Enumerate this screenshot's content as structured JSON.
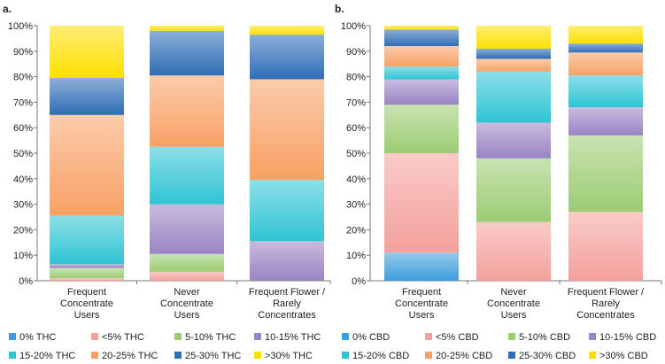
{
  "colors": {
    "c0": "#3c9fdd",
    "c1": "#f4a09c",
    "c2": "#9ccc72",
    "c3": "#9a84c4",
    "c4": "#2fc4d4",
    "c5": "#f8a165",
    "c6": "#2f6db6",
    "c7": "#ffe000"
  },
  "chart_data": [
    {
      "type": "bar",
      "stacked": true,
      "title": "a.",
      "categories": [
        "Frequent\nConcentrate\nUsers",
        "Never\nConcentrate\nUsers",
        "Frequent Flower /\nRarely\nConcentrates"
      ],
      "ylim": [
        0,
        100
      ],
      "yticks": [
        "0%",
        "10%",
        "20%",
        "30%",
        "40%",
        "50%",
        "60%",
        "70%",
        "80%",
        "90%",
        "100%"
      ],
      "series": [
        {
          "name": "0% THC",
          "color": "c0",
          "values": [
            0,
            0,
            0
          ]
        },
        {
          "name": "<5% THC",
          "color": "c1",
          "values": [
            1,
            3.5,
            0
          ]
        },
        {
          "name": "5-10% THC",
          "color": "c2",
          "values": [
            4,
            7,
            0
          ]
        },
        {
          "name": "10-15% THC",
          "color": "c3",
          "values": [
            1.5,
            19.5,
            15.5
          ]
        },
        {
          "name": "15-20% THC",
          "color": "c4",
          "values": [
            19,
            22.5,
            24
          ]
        },
        {
          "name": "20-25% THC",
          "color": "c5",
          "values": [
            39.5,
            28,
            39.5
          ]
        },
        {
          "name": "25-30% THC",
          "color": "c6",
          "values": [
            14.5,
            17.5,
            17.5
          ]
        },
        {
          "name": ">30% THC",
          "color": "c7",
          "values": [
            20.5,
            2,
            3.5
          ]
        }
      ],
      "legend": "bottom"
    },
    {
      "type": "bar",
      "stacked": true,
      "title": "b.",
      "categories": [
        "Frequent\nConcentrate\nUsers",
        "Never\nConcentrate\nUsers",
        "Frequent Flower /\nRarely\nConcentrates"
      ],
      "ylim": [
        0,
        100
      ],
      "yticks": [
        "0%",
        "10%",
        "20%",
        "30%",
        "40%",
        "50%",
        "60%",
        "70%",
        "80%",
        "90%",
        "100%"
      ],
      "series": [
        {
          "name": "0% CBD",
          "color": "c0",
          "values": [
            11,
            0,
            0
          ]
        },
        {
          "name": "<5% CBD",
          "color": "c1",
          "values": [
            39,
            23,
            27
          ]
        },
        {
          "name": "5-10% CBD",
          "color": "c2",
          "values": [
            19,
            25,
            30
          ]
        },
        {
          "name": "10-15% CBD",
          "color": "c3",
          "values": [
            10,
            14,
            11
          ]
        },
        {
          "name": "15-20% CBD",
          "color": "c4",
          "values": [
            5,
            20,
            12.5
          ]
        },
        {
          "name": "20-25% CBD",
          "color": "c5",
          "values": [
            8,
            5,
            9
          ]
        },
        {
          "name": "25-30% CBD",
          "color": "c6",
          "values": [
            6.5,
            4,
            3.5
          ]
        },
        {
          "name": ">30% CBD",
          "color": "c7",
          "values": [
            1.5,
            9,
            7
          ]
        }
      ],
      "legend": "bottom"
    }
  ]
}
